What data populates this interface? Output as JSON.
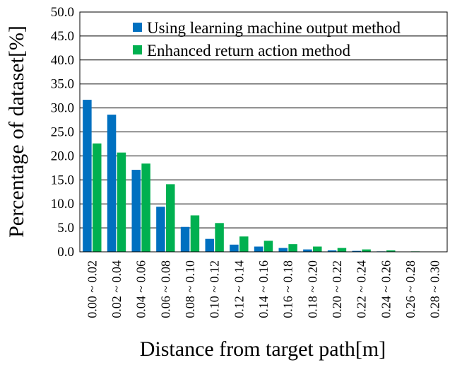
{
  "chart_data": {
    "type": "bar",
    "xlabel": "Distance from target path[m]",
    "ylabel": "Percentage of dataset[%]",
    "ylim": [
      0,
      50
    ],
    "yticks": [
      "0.0",
      "5.0",
      "10.0",
      "15.0",
      "20.0",
      "25.0",
      "30.0",
      "35.0",
      "40.0",
      "45.0",
      "50.0"
    ],
    "grid": true,
    "legend_position": "top-right",
    "categories": [
      "0.00 ~ 0.02",
      "0.02 ~ 0.04",
      "0.04 ~ 0.06",
      "0.06 ~ 0.08",
      "0.08 ~ 0.10",
      "0.10 ~ 0.12",
      "0.12 ~ 0.14",
      "0.14 ~ 0.16",
      "0.16 ~ 0.18",
      "0.18 ~ 0.20",
      "0.20 ~ 0.22",
      "0.22 ~ 0.24",
      "0.24 ~ 0.26",
      "0.26 ~ 0.28",
      "0.28 ~ 0.30"
    ],
    "series": [
      {
        "name": "Using learning machine output method",
        "color": "#0070C0",
        "values": [
          31.7,
          28.6,
          17.1,
          9.4,
          5.2,
          2.7,
          1.5,
          1.1,
          0.8,
          0.5,
          0.3,
          0.2,
          0.1,
          0.0,
          0.0
        ]
      },
      {
        "name": "Enhanced return action method",
        "color": "#00B050",
        "values": [
          22.6,
          20.7,
          18.4,
          14.1,
          7.6,
          6.0,
          3.2,
          2.3,
          1.6,
          1.1,
          0.8,
          0.5,
          0.3,
          0.1,
          0.0
        ]
      }
    ]
  }
}
